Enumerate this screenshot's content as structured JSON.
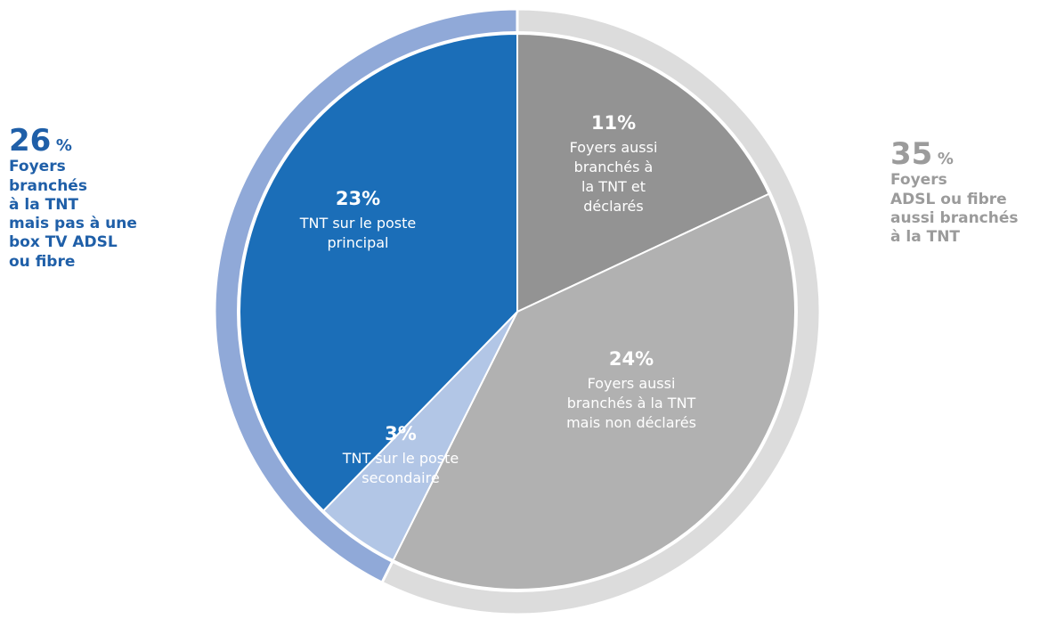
{
  "chart_data": {
    "type": "pie",
    "slices": [
      {
        "label": "Foyers aussi branchés à la TNT et déclarés",
        "value": 11,
        "value_label": "11%",
        "color": "#939393"
      },
      {
        "label": "Foyers aussi branchés à la TNT mais non déclarés",
        "value": 24,
        "value_label": "24%",
        "color": "#b1b1b1"
      },
      {
        "label": "TNT sur le poste secondaire",
        "value": 3,
        "value_label": "3%",
        "color": "#b2c6e6"
      },
      {
        "label": "TNT sur le poste principal",
        "value": 23,
        "value_label": "23%",
        "color": "#1b6eb8"
      }
    ],
    "outer_ring": [
      {
        "value": 35,
        "color": "#dcdcdc"
      },
      {
        "value": 26,
        "color": "#90a9d8"
      }
    ]
  },
  "annotations": {
    "left": {
      "value": "26",
      "unit": "%",
      "text": "Foyers\nbranchés\nà la TNT\nmais pas à une\nbox TV ADSL\nou fibre",
      "color": "#1f5fa8"
    },
    "right": {
      "value": "35",
      "unit": "%",
      "text": "Foyers\nADSL ou fibre\naussi branchés\nà la TNT",
      "color": "#9b9b9b"
    }
  }
}
